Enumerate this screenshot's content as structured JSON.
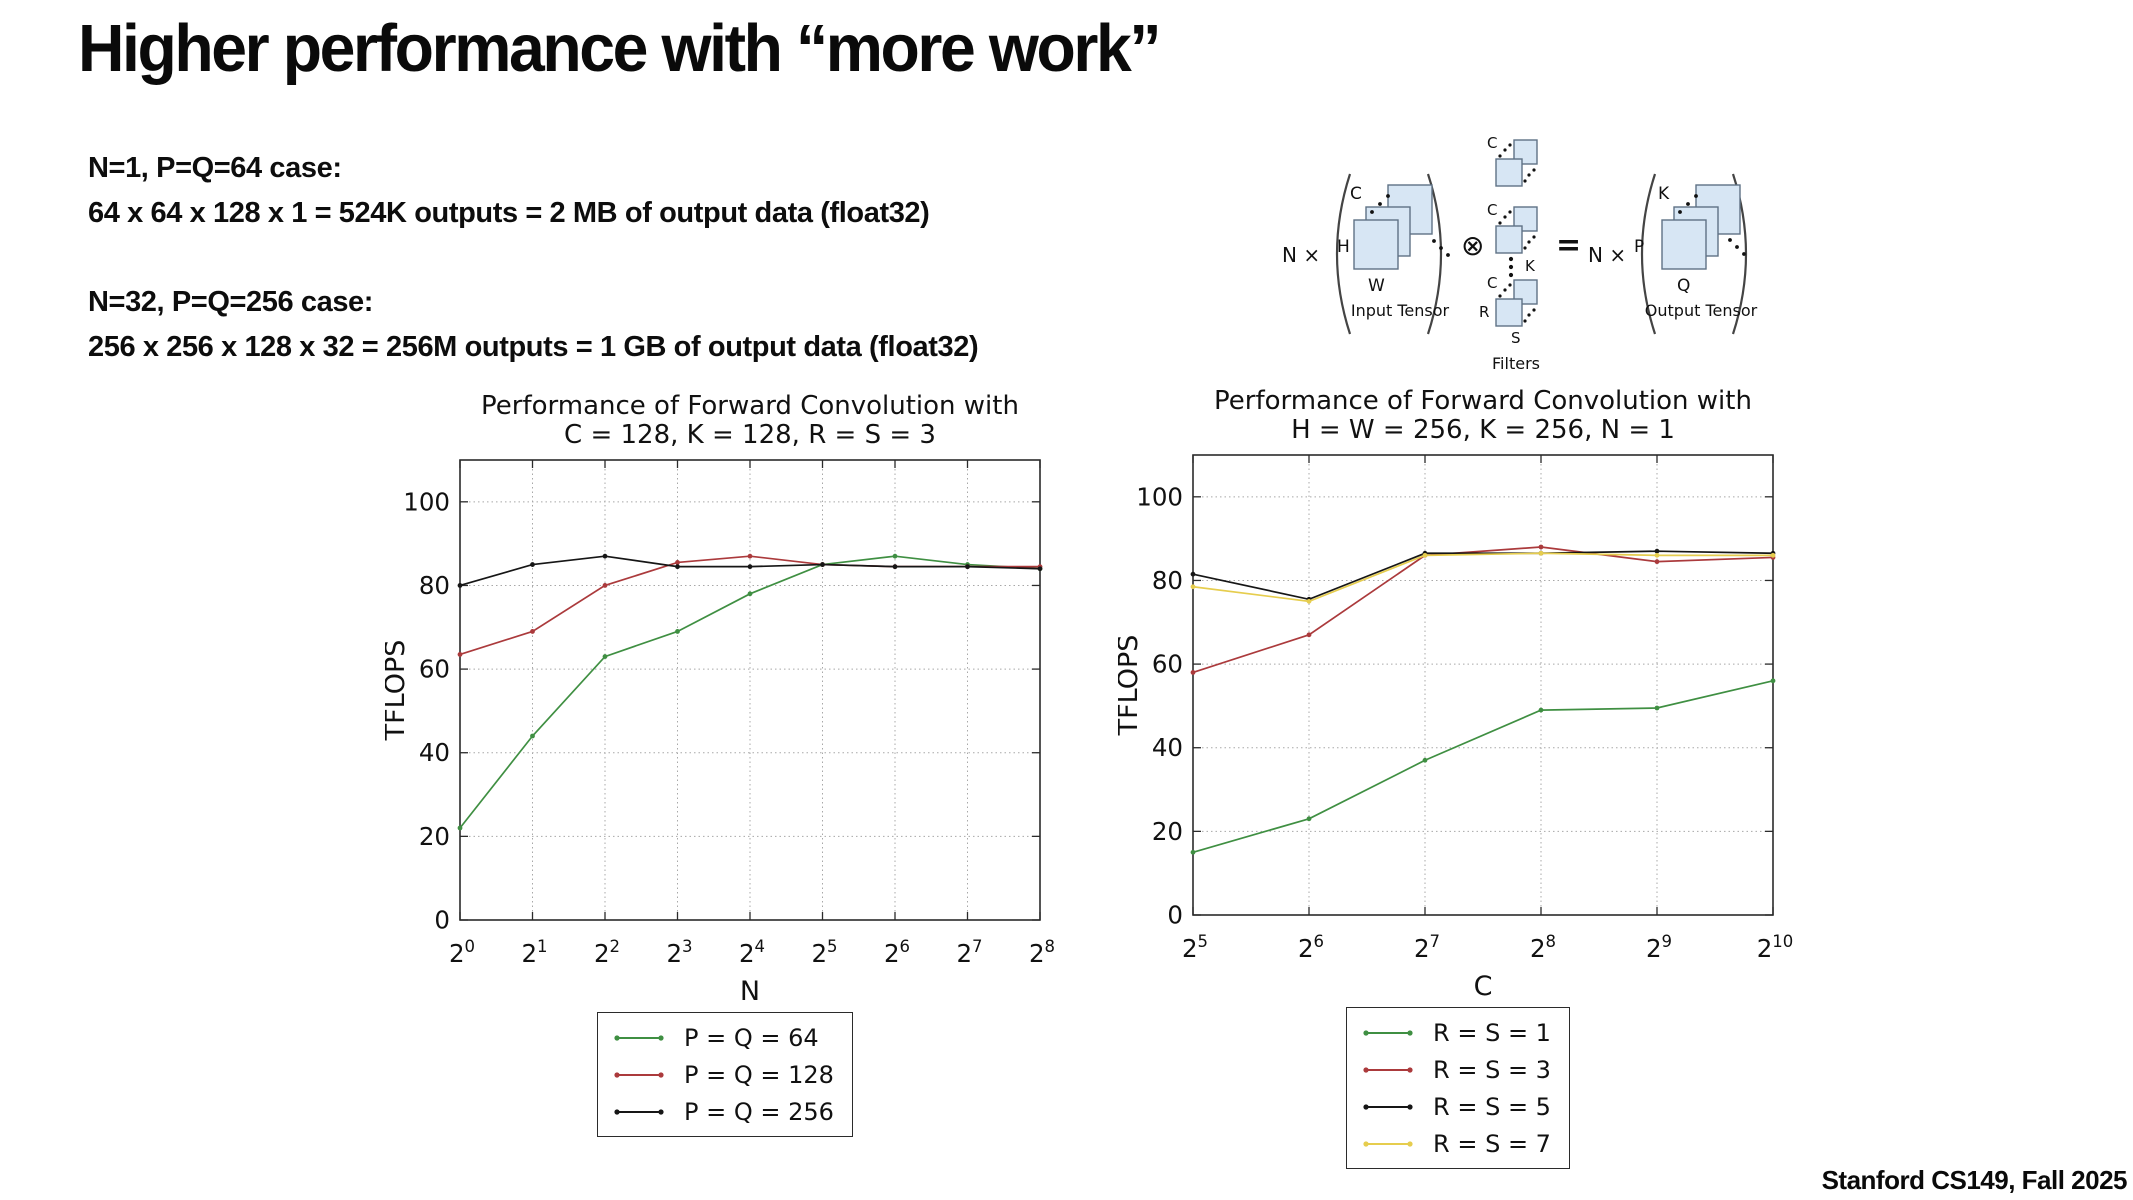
{
  "slide": {
    "title": "Higher performance with “more work”",
    "footer": "Stanford CS149, Fall 2025",
    "case1": {
      "heading": "N=1, P=Q=64 case:",
      "detail": "64 x 64 x 128 x 1 = 524K outputs = 2 MB of output data (float32)"
    },
    "case2": {
      "heading": "N=32, P=Q=256 case:",
      "detail": "256 x 256 x 128 x 32 = 256M outputs = 1 GB of output data (float32)"
    }
  },
  "diagram": {
    "n_times": "N ×",
    "otimes": "⊗",
    "equals": "=",
    "input": {
      "c": "C",
      "h": "H",
      "w": "W",
      "caption": "Input Tensor"
    },
    "filters": {
      "c": "C",
      "k": "K",
      "r": "R",
      "s": "S",
      "caption": "Filters"
    },
    "output": {
      "k": "K",
      "p": "P",
      "q": "Q",
      "caption": "Output Tensor"
    },
    "square_fill": "#d7e6f4",
    "square_stroke": "#5f7285"
  },
  "chart_data": [
    {
      "type": "line",
      "title_lines": [
        "Performance of Forward Convolution with",
        "C = 128, K = 128, R = S = 3"
      ],
      "xlabel": "N",
      "ylabel": "TFLOPS",
      "x_tick_base": "2",
      "x_tick_exps": [
        "0",
        "1",
        "2",
        "3",
        "4",
        "5",
        "6",
        "7",
        "8"
      ],
      "yticks": [
        0,
        20,
        40,
        60,
        80,
        100
      ],
      "ylim": [
        0,
        110
      ],
      "grid": true,
      "legend_position": "bottom-center",
      "series": [
        {
          "name": "P = Q = 64",
          "color": "#3f8f42",
          "values": [
            22,
            44,
            63,
            69,
            78,
            85,
            87,
            85,
            84
          ]
        },
        {
          "name": "P = Q = 128",
          "color": "#ab3a3c",
          "values": [
            63.5,
            69,
            80,
            85.5,
            87,
            85,
            84.5,
            84.5,
            84.5
          ]
        },
        {
          "name": "P = Q = 256",
          "color": "#161616",
          "values": [
            80,
            85,
            87,
            84.5,
            84.5,
            85,
            84.5,
            84.5,
            84
          ]
        }
      ]
    },
    {
      "type": "line",
      "title_lines": [
        "Performance of Forward Convolution with",
        "H = W = 256, K = 256, N = 1"
      ],
      "xlabel": "C",
      "ylabel": "TFLOPS",
      "x_tick_base": "2",
      "x_tick_exps": [
        "5",
        "6",
        "7",
        "8",
        "9",
        "10"
      ],
      "yticks": [
        0,
        20,
        40,
        60,
        80,
        100
      ],
      "ylim": [
        0,
        110
      ],
      "grid": true,
      "legend_position": "bottom-center",
      "series": [
        {
          "name": "R = S = 1",
          "color": "#3f8f42",
          "values": [
            15,
            23,
            37,
            49,
            49.5,
            56
          ]
        },
        {
          "name": "R = S = 3",
          "color": "#ab3a3c",
          "values": [
            58,
            67,
            86,
            88,
            84.5,
            85.5
          ]
        },
        {
          "name": "R = S = 5",
          "color": "#161616",
          "values": [
            81.5,
            75.5,
            86.5,
            86.5,
            87,
            86.5
          ]
        },
        {
          "name": "R = S = 7",
          "color": "#e6cd4e",
          "values": [
            78.5,
            75,
            86,
            86.5,
            86,
            86
          ]
        }
      ]
    }
  ]
}
